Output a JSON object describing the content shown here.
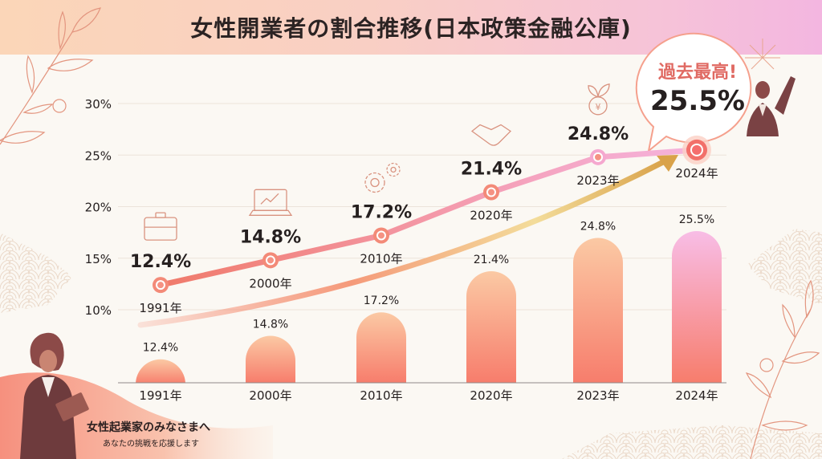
{
  "header": {
    "title": "女性開業者の割合推移(日本政策金融公庫)"
  },
  "callout": {
    "label": "過去最高!",
    "value": "25.5%",
    "year": "2024年"
  },
  "footer": {
    "title": "女性起業家のみなさまへ",
    "subtitle": "あなたの挑戦を応援します"
  },
  "colors": {
    "line_start": "#f07a6a",
    "line_end": "#f5b3dd",
    "bar_top": "#fbc9a4",
    "bar_bottom": "#f77d6c",
    "bar_last_top": "#f8bde6",
    "arrow_start": "#f5876f",
    "arrow_end": "#d9a24a",
    "text": "#262020",
    "accent": "#e06a63"
  },
  "icons": [
    "briefcase-icon",
    "laptop-chart-icon",
    "gears-icon",
    "handshake-icon",
    "yen-sprout-icon",
    ""
  ],
  "chart_data": {
    "type": "bar",
    "title": "女性開業者の割合推移(日本政策金融公庫)",
    "xlabel": "",
    "ylabel": "",
    "categories": [
      "1991年",
      "2000年",
      "2010年",
      "2020年",
      "2023年",
      "2024年"
    ],
    "values": [
      12.4,
      14.8,
      17.2,
      21.4,
      24.8,
      25.5
    ],
    "value_labels": [
      "12.4%",
      "14.8%",
      "17.2%",
      "21.4%",
      "24.8%",
      "25.5%"
    ],
    "line_series": {
      "name": "女性開業者の割合",
      "values": [
        12.4,
        14.8,
        17.2,
        21.4,
        24.8,
        25.5
      ],
      "labels": [
        "12.4%",
        "14.8%",
        "17.2%",
        "21.4%",
        "24.8%",
        "25.5%"
      ]
    },
    "yticks": [
      "10%",
      "15%",
      "20%",
      "25%",
      "30%"
    ],
    "ytick_values": [
      10,
      15,
      20,
      25,
      30
    ],
    "ylim": [
      10,
      30
    ],
    "grid": true,
    "legend": "none",
    "annotation": "過去最高! 25.5%"
  }
}
